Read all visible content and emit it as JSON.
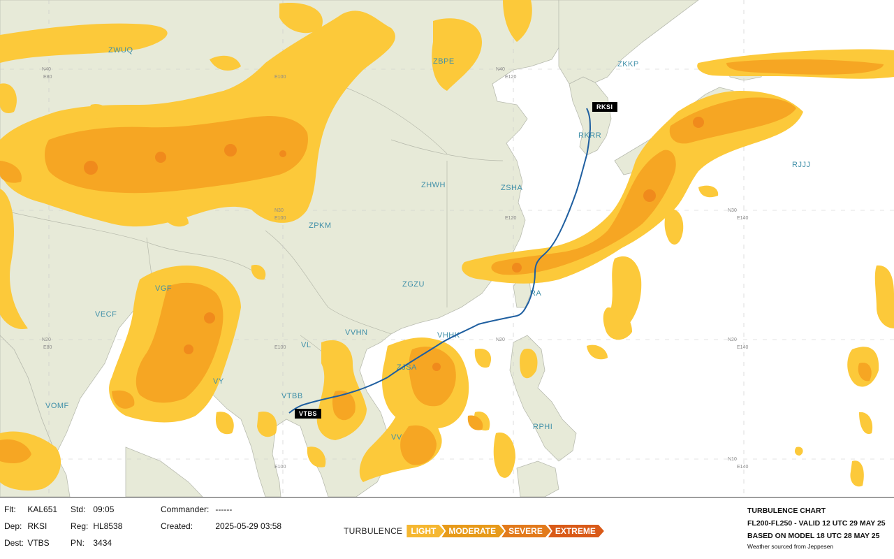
{
  "map": {
    "fir_labels": [
      {
        "code": "ZWUQ"
      },
      {
        "code": "ZBPE"
      },
      {
        "code": "ZKKP"
      },
      {
        "code": "RJJJ"
      },
      {
        "code": "ZHWH"
      },
      {
        "code": "ZSHA"
      },
      {
        "code": "ZPKM"
      },
      {
        "code": "VGF"
      },
      {
        "code": "ZGZU"
      },
      {
        "code": "VECF"
      },
      {
        "code": "VVHN"
      },
      {
        "code": "VHHK"
      },
      {
        "code": "VL"
      },
      {
        "code": "VY"
      },
      {
        "code": "ZJSA"
      },
      {
        "code": "VTBB"
      },
      {
        "code": "VOMF"
      },
      {
        "code": "RPHI"
      },
      {
        "code": "VV"
      },
      {
        "code": "RKRR"
      },
      {
        "code": "RA"
      }
    ],
    "grid_labels": {
      "n40": "N40",
      "n30": "N30",
      "n20": "N20",
      "n10": "N10",
      "e80": "E80",
      "e100": "E100",
      "e120": "E120",
      "e140": "E140"
    },
    "airports": {
      "departure": "RKSI",
      "destination": "VTBS"
    }
  },
  "flight": {
    "flt_label": "Flt:",
    "flt_value": "KAL651",
    "dep_label": "Dep:",
    "dep_value": "RKSI",
    "dest_label": "Dest:",
    "dest_value": "VTBS",
    "std_label": "Std:",
    "std_value": "09:05",
    "reg_label": "Reg:",
    "reg_value": "HL8538",
    "pn_label": "PN:",
    "pn_value": "3434",
    "commander_label": "Commander:",
    "commander_value": "------",
    "created_label": "Created:",
    "created_value": "2025-05-29 03:58"
  },
  "legend": {
    "title": "TURBULENCE",
    "levels": [
      {
        "label": "LIGHT",
        "color": "#f5b731"
      },
      {
        "label": "MODERATE",
        "color": "#e79a1a"
      },
      {
        "label": "SEVERE",
        "color": "#e27a1c"
      },
      {
        "label": "EXTREME",
        "color": "#d95a18"
      }
    ]
  },
  "chart_info": {
    "title": "TURBULENCE CHART",
    "valid": "FL200-FL250 - VALID 12 UTC 29 MAY 25",
    "based": "BASED ON MODEL 18 UTC 28 MAY 25",
    "source": "Weather sourced from Jeppesen"
  },
  "colors": {
    "land": "#e7ead8",
    "water": "#ffffff",
    "turb_light": "#fcc93a",
    "turb_moderate": "#f6a623",
    "turb_severe": "#f08a1c",
    "route": "#1f5fa0"
  }
}
